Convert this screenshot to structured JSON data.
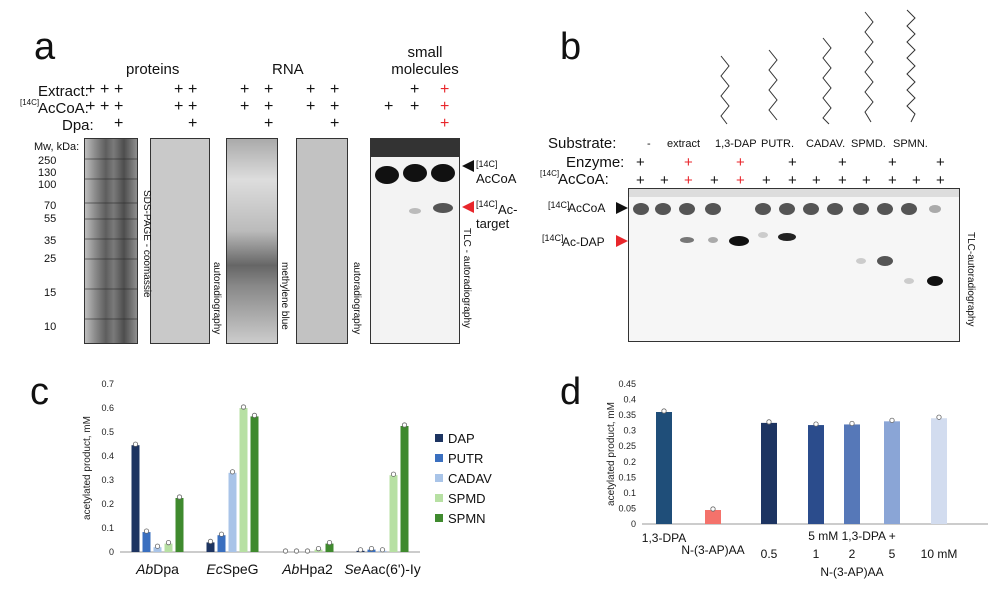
{
  "panelA": {
    "label": "a",
    "headers": {
      "proteins": "proteins",
      "rna": "RNA",
      "small_molecules": "small molecules"
    },
    "row_labels": {
      "extract": "Extract:",
      "acoa_prefix": "[14C]",
      "acoa": "AcCoA:",
      "dpa": "Dpa:"
    },
    "plus": "+",
    "mw_title": "Mw, kDa:",
    "mw_ticks": [
      "250",
      "130",
      "100",
      "70",
      "55",
      "35",
      "25",
      "15",
      "10"
    ],
    "side_labels": {
      "sds": "SDS-PAGE - coomassie",
      "autorad1": "autoradiography",
      "mblue": "methylene blue",
      "autorad2": "autoradiography",
      "tlc": "TLC - autoradiography"
    },
    "arrows": {
      "acoa_prefix": "[14C]",
      "acoa": "AcCoA",
      "target_prefix": "[14C]",
      "target_a": "Ac-",
      "target_b": "target"
    }
  },
  "panelB": {
    "label": "b",
    "row_labels": {
      "substrate": "Substrate:",
      "enzyme": "Enzyme:",
      "acoa_prefix": "[14C]",
      "acoa": "AcCoA:"
    },
    "substrates": [
      "-",
      "extract",
      "1,3-DAP",
      "PUTR.",
      "CADAV.",
      "SPMD.",
      "SPMN."
    ],
    "arrows": {
      "acoa_prefix": "[14C]",
      "acoa": "AcCoA",
      "acdap_prefix": "[14C]",
      "acdap": "Ac-DAP"
    },
    "side_label": "TLC-autoradiography"
  },
  "panelC": {
    "label": "c",
    "chart_data": {
      "type": "bar",
      "ylabel": "acetylated product, mM",
      "ylim": [
        0,
        0.7
      ],
      "yticks": [
        "0",
        "0.1",
        "0.2",
        "0.3",
        "0.4",
        "0.5",
        "0.6",
        "0.7"
      ],
      "categories_italic": [
        "Ab",
        "Ec",
        "Ab",
        "Se"
      ],
      "categories_rest": [
        "Dpa",
        "SpeG",
        "Hpa2",
        "Aac(6')-Iy"
      ],
      "series": [
        {
          "name": "DAP",
          "color": "#1d3461",
          "values": [
            0.445,
            0.04,
            0.0,
            0.005
          ]
        },
        {
          "name": "PUTR",
          "color": "#3a6fbf",
          "values": [
            0.083,
            0.07,
            0.0,
            0.01
          ]
        },
        {
          "name": "CADAV",
          "color": "#a9c4e8",
          "values": [
            0.02,
            0.33,
            0.0,
            0.005
          ]
        },
        {
          "name": "SPMD",
          "color": "#b7e0a3",
          "values": [
            0.035,
            0.6,
            0.01,
            0.32
          ]
        },
        {
          "name": "SPMN",
          "color": "#3f8a2e",
          "values": [
            0.225,
            0.565,
            0.035,
            0.525
          ]
        }
      ]
    }
  },
  "panelD": {
    "label": "d",
    "chart_data": {
      "type": "bar",
      "ylabel": "acetylated product, mM",
      "ylim": [
        0,
        0.45
      ],
      "yticks": [
        "0",
        "0.05",
        "0.1",
        "0.15",
        "0.2",
        "0.25",
        "0.3",
        "0.35",
        "0.4",
        "0.45"
      ],
      "categories": [
        "1,3-DPA",
        "N-(3-AP)AA",
        "0.5",
        "1",
        "2",
        "5",
        "10 mM"
      ],
      "values": [
        0.36,
        0.045,
        0.325,
        0.318,
        0.32,
        0.33,
        0.34
      ],
      "colors": [
        "#1f4e79",
        "#f4726b",
        "#1d3461",
        "#2b4c8c",
        "#5678b8",
        "#8aa5d6",
        "#d2dcef"
      ],
      "group_label_top": "5 mM 1,3-DPA +",
      "group_label_bottom": "N-(3-AP)AA"
    }
  }
}
